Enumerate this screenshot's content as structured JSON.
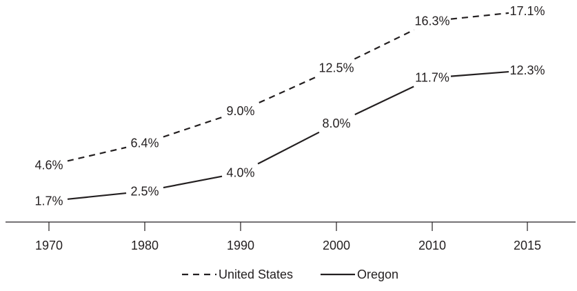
{
  "chart_data": {
    "type": "line",
    "categories": [
      "1970",
      "1980",
      "1990",
      "2000",
      "2010",
      "2015"
    ],
    "series": [
      {
        "name": "United States",
        "values": [
          4.6,
          6.4,
          9.0,
          12.5,
          16.3,
          17.1
        ],
        "labels": [
          "4.6%",
          "6.4%",
          "9.0%",
          "12.5%",
          "16.3%",
          "17.1%"
        ],
        "line_style": "dashed",
        "color": "#231f20"
      },
      {
        "name": "Oregon",
        "values": [
          1.7,
          2.5,
          4.0,
          8.0,
          11.7,
          12.3
        ],
        "labels": [
          "1.7%",
          "2.5%",
          "4.0%",
          "8.0%",
          "11.7%",
          "12.3%"
        ],
        "line_style": "solid",
        "color": "#231f20"
      }
    ],
    "title": "",
    "xlabel": "",
    "ylabel": "",
    "ylim": [
      0,
      18
    ],
    "grid": false,
    "legend_position": "bottom"
  }
}
